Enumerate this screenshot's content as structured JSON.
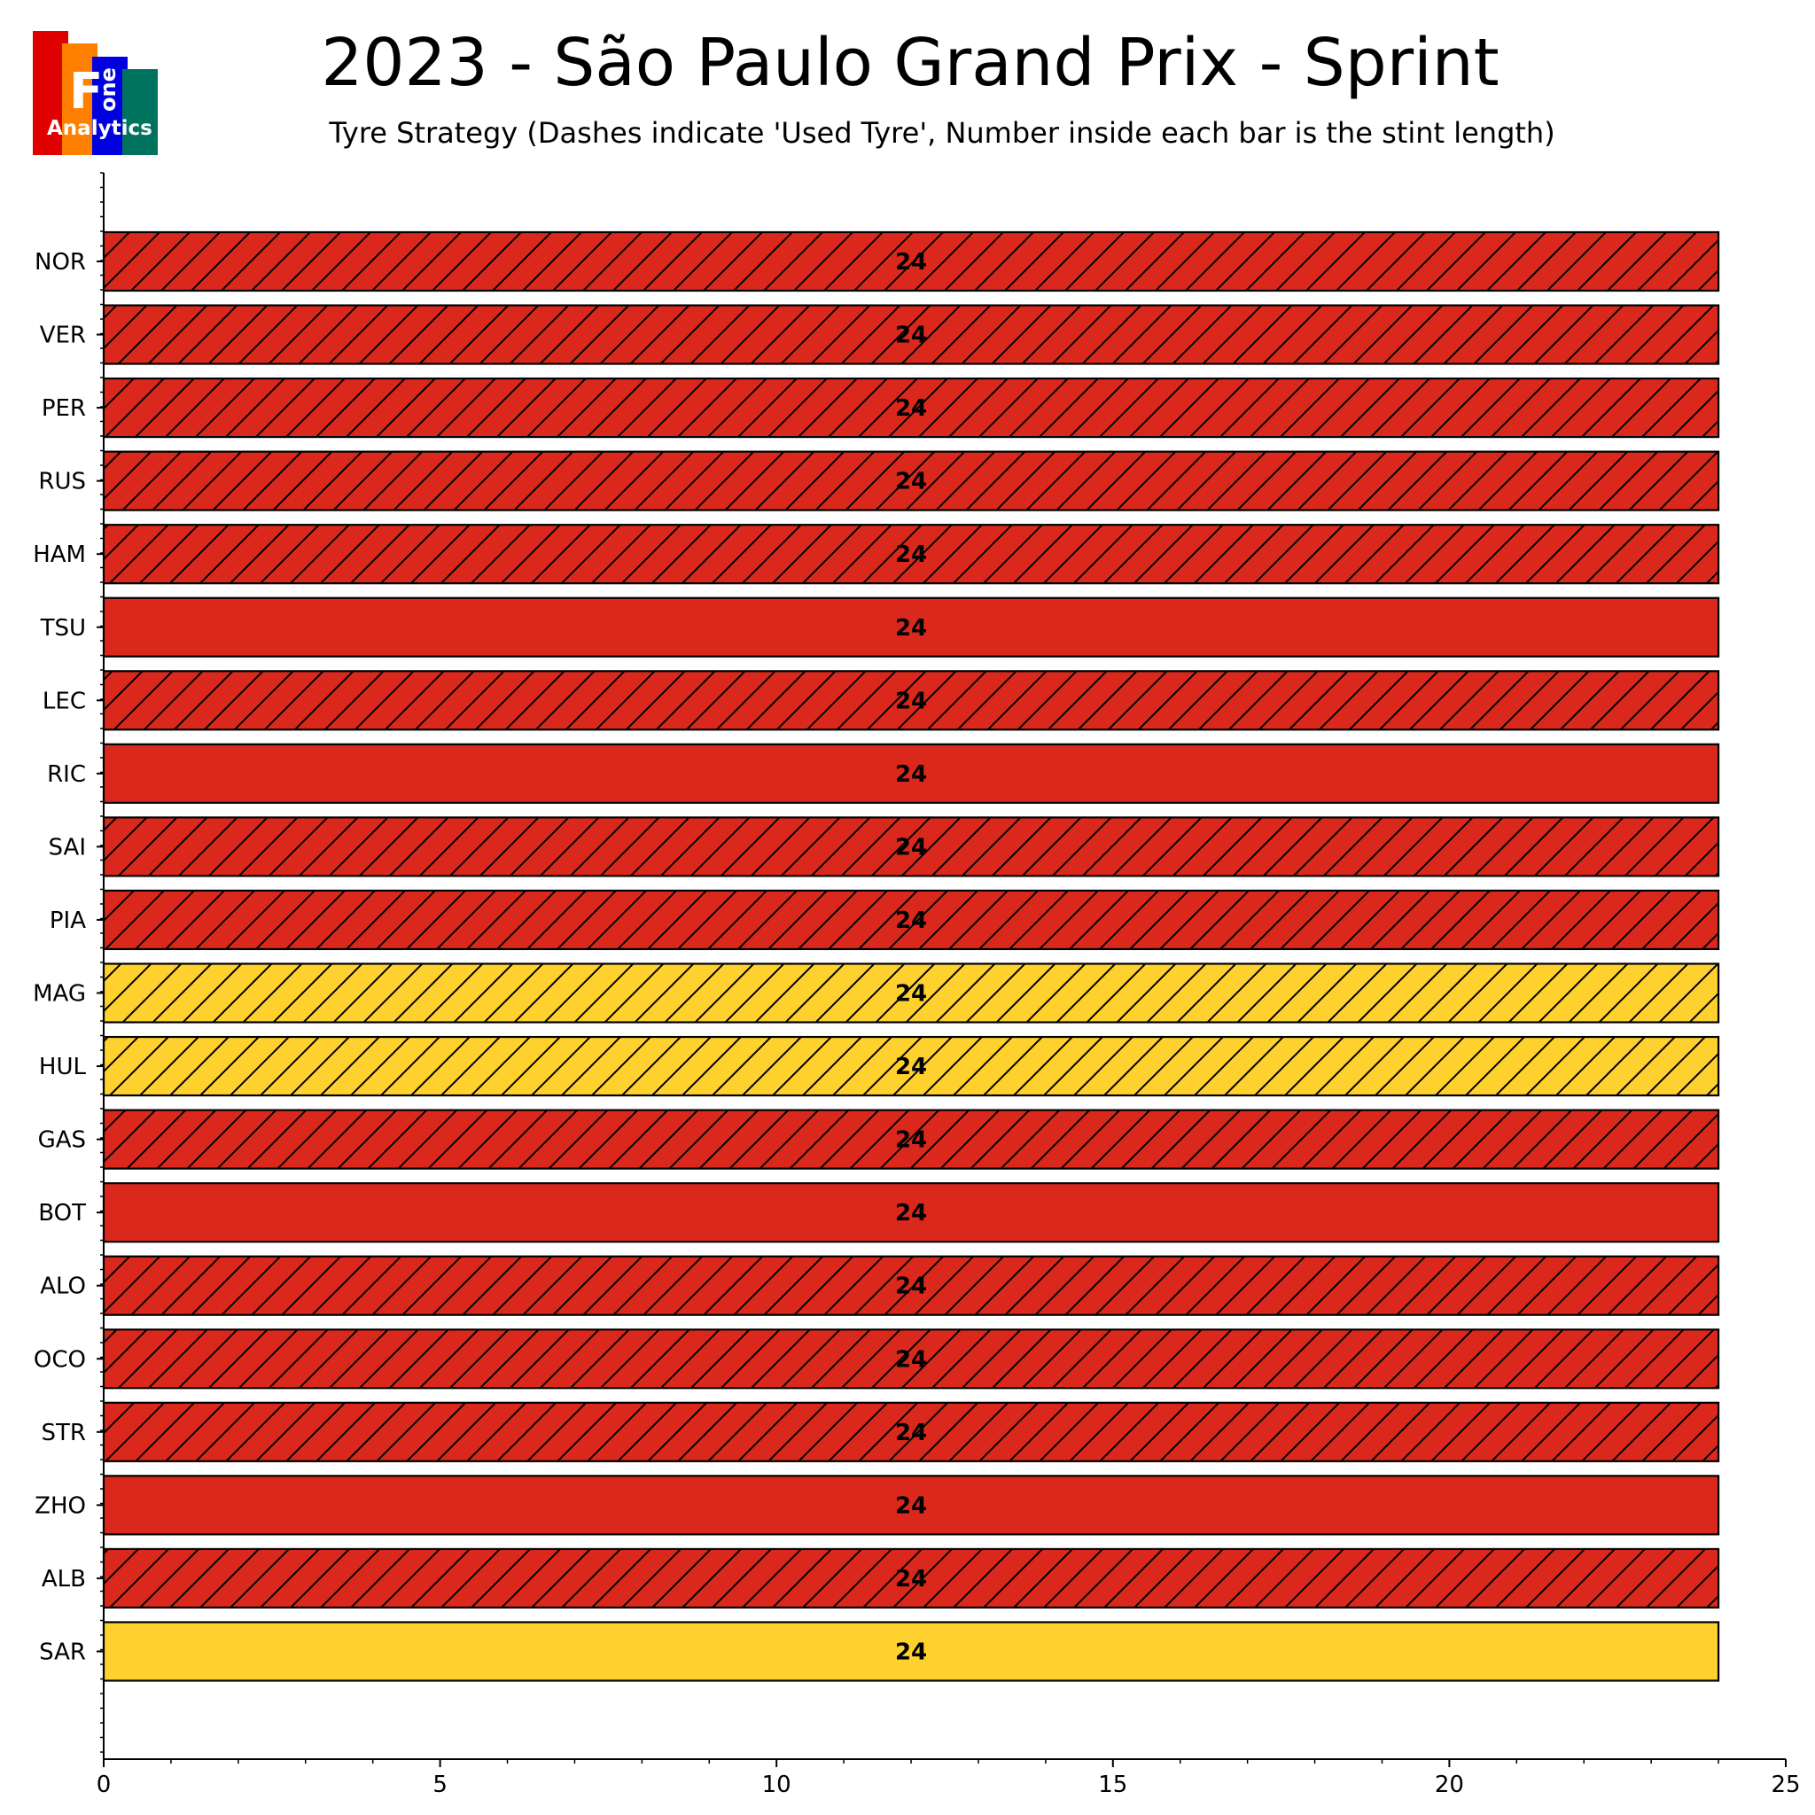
{
  "chart_data": {
    "type": "bar",
    "orientation": "horizontal",
    "title": "2023 - São Paulo Grand Prix - Sprint",
    "subtitle": "Tyre Strategy (Dashes indicate 'Used Tyre', Number inside each bar is the stint length)",
    "xlim": [
      0,
      25
    ],
    "xticks": [
      0,
      5,
      10,
      15,
      20,
      25
    ],
    "grid": false,
    "compound_colors": {
      "SOFT": "#da291c",
      "MEDIUM": "#ffd12e"
    },
    "drivers": [
      {
        "driver": "NOR",
        "stints": [
          {
            "start": 0,
            "length": 24,
            "compound": "SOFT",
            "used": true
          }
        ]
      },
      {
        "driver": "VER",
        "stints": [
          {
            "start": 0,
            "length": 24,
            "compound": "SOFT",
            "used": true
          }
        ]
      },
      {
        "driver": "PER",
        "stints": [
          {
            "start": 0,
            "length": 24,
            "compound": "SOFT",
            "used": true
          }
        ]
      },
      {
        "driver": "RUS",
        "stints": [
          {
            "start": 0,
            "length": 24,
            "compound": "SOFT",
            "used": true
          }
        ]
      },
      {
        "driver": "HAM",
        "stints": [
          {
            "start": 0,
            "length": 24,
            "compound": "SOFT",
            "used": true
          }
        ]
      },
      {
        "driver": "TSU",
        "stints": [
          {
            "start": 0,
            "length": 24,
            "compound": "SOFT",
            "used": false
          }
        ]
      },
      {
        "driver": "LEC",
        "stints": [
          {
            "start": 0,
            "length": 24,
            "compound": "SOFT",
            "used": true
          }
        ]
      },
      {
        "driver": "RIC",
        "stints": [
          {
            "start": 0,
            "length": 24,
            "compound": "SOFT",
            "used": false
          }
        ]
      },
      {
        "driver": "SAI",
        "stints": [
          {
            "start": 0,
            "length": 24,
            "compound": "SOFT",
            "used": true
          }
        ]
      },
      {
        "driver": "PIA",
        "stints": [
          {
            "start": 0,
            "length": 24,
            "compound": "SOFT",
            "used": true
          }
        ]
      },
      {
        "driver": "MAG",
        "stints": [
          {
            "start": 0,
            "length": 24,
            "compound": "MEDIUM",
            "used": true
          }
        ]
      },
      {
        "driver": "HUL",
        "stints": [
          {
            "start": 0,
            "length": 24,
            "compound": "MEDIUM",
            "used": true
          }
        ]
      },
      {
        "driver": "GAS",
        "stints": [
          {
            "start": 0,
            "length": 24,
            "compound": "SOFT",
            "used": true
          }
        ]
      },
      {
        "driver": "BOT",
        "stints": [
          {
            "start": 0,
            "length": 24,
            "compound": "SOFT",
            "used": false
          }
        ]
      },
      {
        "driver": "ALO",
        "stints": [
          {
            "start": 0,
            "length": 24,
            "compound": "SOFT",
            "used": true
          }
        ]
      },
      {
        "driver": "OCO",
        "stints": [
          {
            "start": 0,
            "length": 24,
            "compound": "SOFT",
            "used": true
          }
        ]
      },
      {
        "driver": "STR",
        "stints": [
          {
            "start": 0,
            "length": 24,
            "compound": "SOFT",
            "used": true
          }
        ]
      },
      {
        "driver": "ZHO",
        "stints": [
          {
            "start": 0,
            "length": 24,
            "compound": "SOFT",
            "used": false
          }
        ]
      },
      {
        "driver": "ALB",
        "stints": [
          {
            "start": 0,
            "length": 24,
            "compound": "SOFT",
            "used": true
          }
        ]
      },
      {
        "driver": "SAR",
        "stints": [
          {
            "start": 0,
            "length": 24,
            "compound": "MEDIUM",
            "used": false
          }
        ]
      }
    ]
  },
  "logo": {
    "letter": "F",
    "side_text": "one",
    "bottom_text": "Analytics",
    "colors": [
      "#e00000",
      "#ff8000",
      "#0000e0",
      "#00735f"
    ]
  }
}
